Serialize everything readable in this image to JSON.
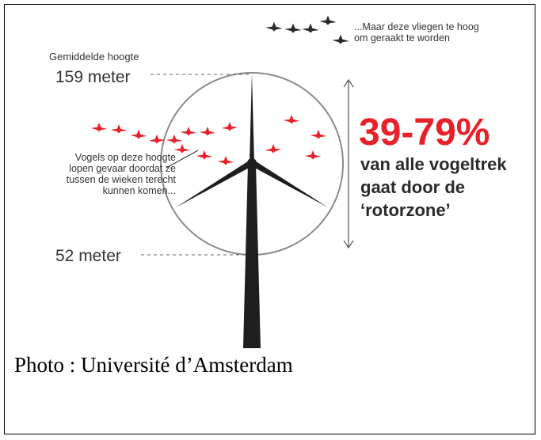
{
  "annotations": {
    "top_note": [
      "...Maar deze vliegen te hoog",
      "om geraakt te worden"
    ],
    "hub_height_label": "Gemiddelde hoogte",
    "top_height": "159 meter",
    "bottom_height": "52 meter",
    "left_note": [
      "Vogels op deze hoogte",
      "lopen gevaar doordat ze",
      "tussen de wieken terecht",
      "kunnen komen..."
    ],
    "stat": "39-79%",
    "stat_text": [
      "van alle vogeltrek",
      "gaat door de",
      "‘rotorzone’"
    ]
  },
  "caption": "Photo : Université d’Amsterdam"
}
